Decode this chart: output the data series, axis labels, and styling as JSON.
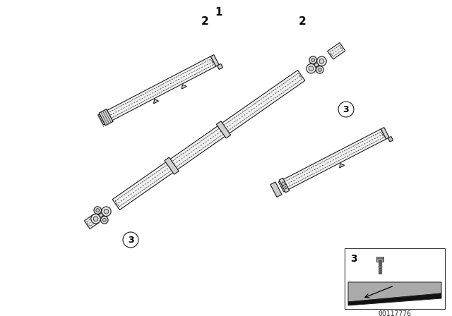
{
  "bg_color": "#ffffff",
  "line_color": "#1a1a1a",
  "label_1": "1",
  "label_2": "2",
  "label_3": "3",
  "catalog_number": "00117776",
  "font_size_label": 11,
  "font_size_catalog": 7,
  "shaft_fc": "#f0f0f0",
  "shaft_ec": "#1a1a1a",
  "uj_fc": "#e8e8e8",
  "dark_fc": "#888888"
}
